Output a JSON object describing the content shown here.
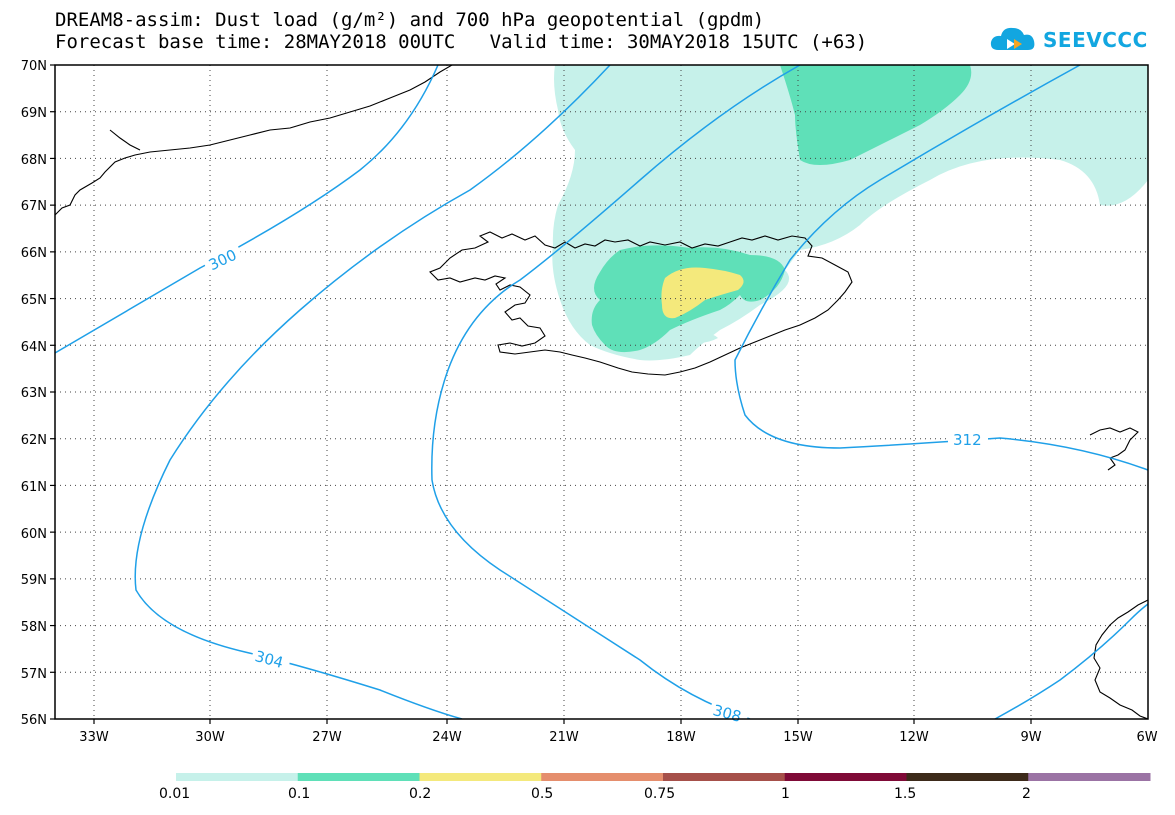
{
  "header": {
    "title_line1": "DREAM8-assim: Dust load (g/m²) and 700 hPa geopotential (gpdm)",
    "title_line2": "Forecast base time: 28MAY2018 00UTC   Valid time: 30MAY2018 15UTC (+63)",
    "logo_text": "SEEVCCC"
  },
  "map": {
    "lat_labels": [
      "70N",
      "69N",
      "68N",
      "67N",
      "66N",
      "65N",
      "64N",
      "63N",
      "62N",
      "61N",
      "60N",
      "59N",
      "58N",
      "57N",
      "56N"
    ],
    "lon_labels": [
      "33W",
      "30W",
      "27W",
      "24W",
      "21W",
      "18W",
      "15W",
      "12W",
      "9W",
      "6W"
    ],
    "contour_labels": [
      "300",
      "304",
      "308",
      "312"
    ],
    "contour_color": "#1fa0e8",
    "coast_color": "#000000"
  },
  "colorbar": {
    "labels": [
      "0.01",
      "0.1",
      "0.2",
      "0.5",
      "0.75",
      "1",
      "1.5",
      "2"
    ],
    "colors": [
      "#c6f1ea",
      "#5fe0b8",
      "#f4e97c",
      "#e58e6d",
      "#a6504a",
      "#7f0a37",
      "#3d2a1a",
      "#9b73a4"
    ]
  }
}
